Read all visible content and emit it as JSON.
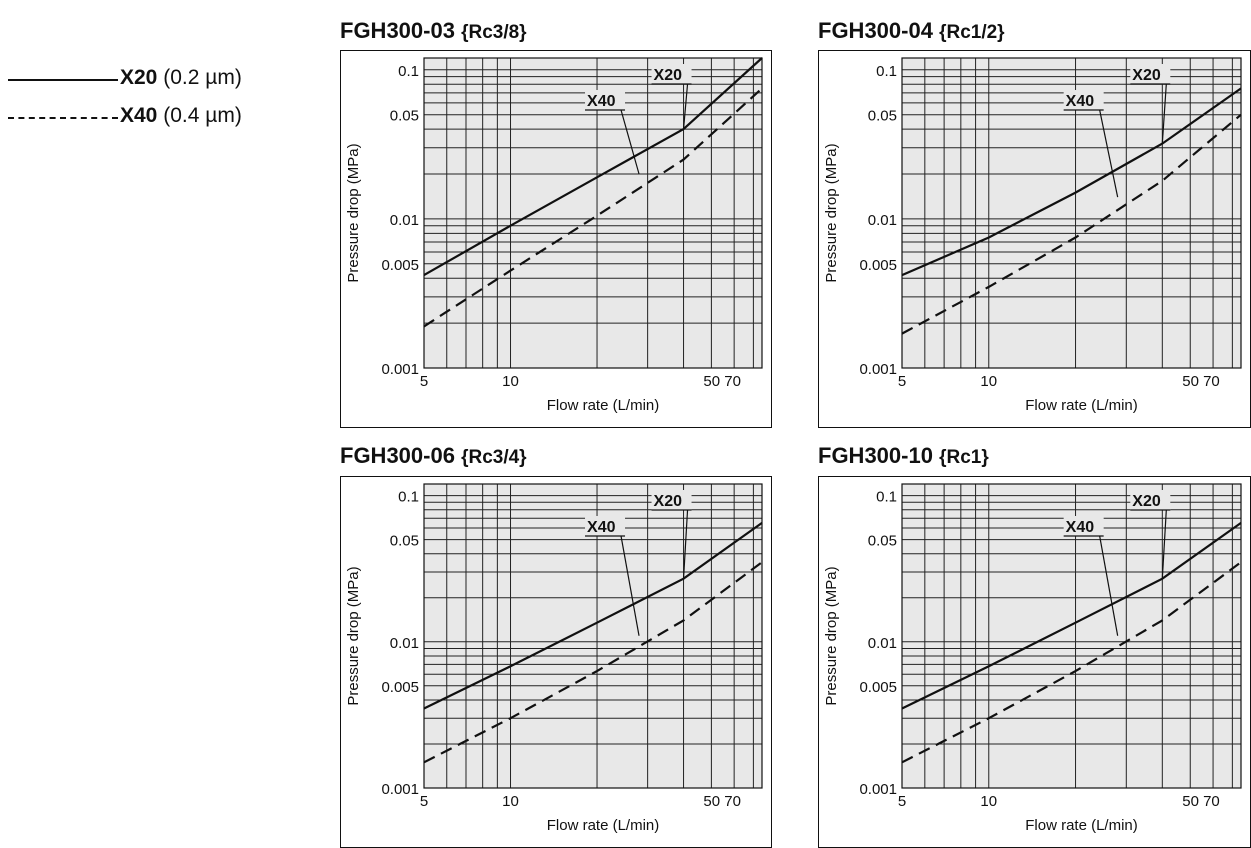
{
  "legend": {
    "items": [
      {
        "name": "X20",
        "detail": "(0.2 µm)",
        "style": "solid"
      },
      {
        "name": "X40",
        "detail": "(0.4 µm)",
        "style": "dashed"
      }
    ]
  },
  "chart_data": [
    {
      "type": "line",
      "title": "FGH300-03",
      "port": "{Rc3/8}",
      "xlabel": "Flow rate (L/min)",
      "ylabel": "Pressure drop (MPa)",
      "xscale": "log",
      "yscale": "log",
      "xlim": [
        5,
        75
      ],
      "ylim": [
        0.001,
        0.12
      ],
      "xticks": [
        "5",
        "10",
        "50 70"
      ],
      "yticks": [
        "0.1",
        "0.05",
        "0.01",
        "0.005",
        "0.001"
      ],
      "grid": true,
      "series": [
        {
          "name": "X20",
          "style": "solid",
          "x": [
            5,
            10,
            20,
            40,
            75
          ],
          "y": [
            0.0042,
            0.009,
            0.019,
            0.04,
            0.12
          ]
        },
        {
          "name": "X40",
          "style": "dashed",
          "x": [
            5,
            10,
            20,
            40,
            75
          ],
          "y": [
            0.0019,
            0.0045,
            0.0105,
            0.025,
            0.075
          ]
        }
      ],
      "annotations": [
        {
          "text": "X20",
          "x": 40,
          "y": 0.04
        },
        {
          "text": "X40",
          "x": 28,
          "y": 0.02
        }
      ]
    },
    {
      "type": "line",
      "title": "FGH300-04",
      "port": "{Rc1/2}",
      "xlabel": "Flow rate (L/min)",
      "ylabel": "Pressure drop (MPa)",
      "xscale": "log",
      "yscale": "log",
      "xlim": [
        5,
        75
      ],
      "ylim": [
        0.001,
        0.12
      ],
      "xticks": [
        "5",
        "10",
        "50 70"
      ],
      "yticks": [
        "0.1",
        "0.05",
        "0.01",
        "0.005",
        "0.001"
      ],
      "grid": true,
      "series": [
        {
          "name": "X20",
          "style": "solid",
          "x": [
            5,
            10,
            20,
            40,
            75
          ],
          "y": [
            0.0042,
            0.0075,
            0.015,
            0.032,
            0.075
          ]
        },
        {
          "name": "X40",
          "style": "dashed",
          "x": [
            5,
            10,
            20,
            40,
            75
          ],
          "y": [
            0.0017,
            0.0035,
            0.0075,
            0.018,
            0.05
          ]
        }
      ],
      "annotations": [
        {
          "text": "X20",
          "x": 40,
          "y": 0.032
        },
        {
          "text": "X40",
          "x": 28,
          "y": 0.014
        }
      ]
    },
    {
      "type": "line",
      "title": "FGH300-06",
      "port": "{Rc3/4}",
      "xlabel": "Flow rate (L/min)",
      "ylabel": "Pressure drop (MPa)",
      "xscale": "log",
      "yscale": "log",
      "xlim": [
        5,
        75
      ],
      "ylim": [
        0.001,
        0.12
      ],
      "xticks": [
        "5",
        "10",
        "50 70"
      ],
      "yticks": [
        "0.1",
        "0.05",
        "0.01",
        "0.005",
        "0.001"
      ],
      "grid": true,
      "series": [
        {
          "name": "X20",
          "style": "solid",
          "x": [
            5,
            10,
            20,
            40,
            75
          ],
          "y": [
            0.0035,
            0.0068,
            0.0135,
            0.027,
            0.065
          ]
        },
        {
          "name": "X40",
          "style": "dashed",
          "x": [
            5,
            10,
            20,
            40,
            75
          ],
          "y": [
            0.0015,
            0.003,
            0.0063,
            0.014,
            0.035
          ]
        }
      ],
      "annotations": [
        {
          "text": "X20",
          "x": 40,
          "y": 0.027
        },
        {
          "text": "X40",
          "x": 28,
          "y": 0.011
        }
      ]
    },
    {
      "type": "line",
      "title": "FGH300-10",
      "port": "{Rc1}",
      "xlabel": "Flow rate (L/min)",
      "ylabel": "Pressure drop (MPa)",
      "xscale": "log",
      "yscale": "log",
      "xlim": [
        5,
        75
      ],
      "ylim": [
        0.001,
        0.12
      ],
      "xticks": [
        "5",
        "10",
        "50 70"
      ],
      "yticks": [
        "0.1",
        "0.05",
        "0.01",
        "0.005",
        "0.001"
      ],
      "grid": true,
      "series": [
        {
          "name": "X20",
          "style": "solid",
          "x": [
            5,
            10,
            20,
            40,
            75
          ],
          "y": [
            0.0035,
            0.0068,
            0.0135,
            0.027,
            0.065
          ]
        },
        {
          "name": "X40",
          "style": "dashed",
          "x": [
            5,
            10,
            20,
            40,
            75
          ],
          "y": [
            0.0015,
            0.003,
            0.0063,
            0.014,
            0.035
          ]
        }
      ],
      "annotations": [
        {
          "text": "X20",
          "x": 40,
          "y": 0.027
        },
        {
          "text": "X40",
          "x": 28,
          "y": 0.011
        }
      ]
    }
  ],
  "colors": {
    "plot_background": "#e8e8e8",
    "line": "#111111",
    "grid": "#222222"
  }
}
